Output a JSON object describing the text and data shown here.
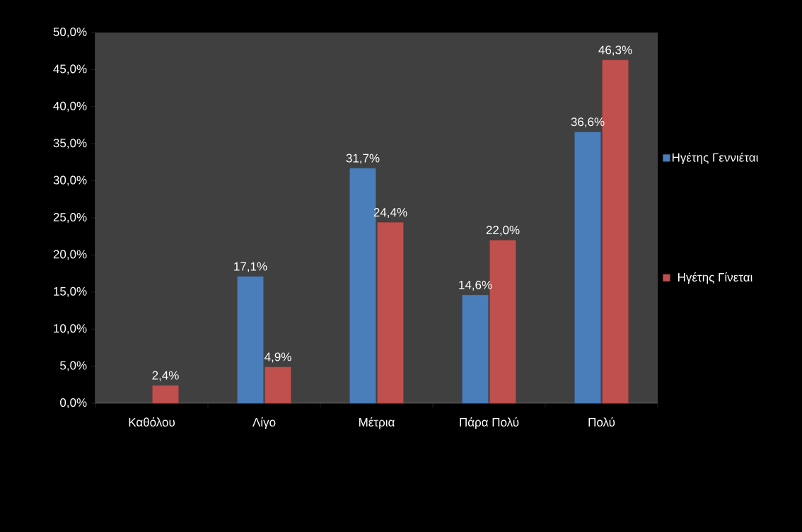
{
  "chart_data": {
    "type": "bar",
    "categories": [
      "Καθόλου",
      "Λίγο",
      "Μέτρια",
      "Πάρα Πολύ",
      "Πολύ"
    ],
    "series": [
      {
        "name": "Ηγέτης Γεννιέται",
        "color": "#4a7ebb",
        "values": [
          null,
          17.1,
          31.7,
          14.6,
          36.6
        ],
        "value_labels": [
          null,
          "17,1%",
          "31,7%",
          "14,6%",
          "36,6%"
        ]
      },
      {
        "name": "Ηγέτης Γίνεται",
        "color": "#c0504d",
        "values": [
          2.4,
          4.9,
          24.4,
          22.0,
          46.3
        ],
        "value_labels": [
          "2,4%",
          "4,9%",
          "24,4%",
          "22,0%",
          "46,3%"
        ]
      }
    ],
    "ylim": [
      0,
      50
    ],
    "yticks": [
      {
        "value": 0,
        "label": "0,0%"
      },
      {
        "value": 5,
        "label": "5,0%"
      },
      {
        "value": 10,
        "label": "10,0%"
      },
      {
        "value": 15,
        "label": "15,0%"
      },
      {
        "value": 20,
        "label": "20,0%"
      },
      {
        "value": 25,
        "label": "25,0%"
      },
      {
        "value": 30,
        "label": "30,0%"
      },
      {
        "value": 35,
        "label": "35,0%"
      },
      {
        "value": 40,
        "label": "40,0%"
      },
      {
        "value": 45,
        "label": "45,0%"
      },
      {
        "value": 50,
        "label": "50,0%"
      }
    ],
    "grid": false,
    "legend": "right"
  }
}
